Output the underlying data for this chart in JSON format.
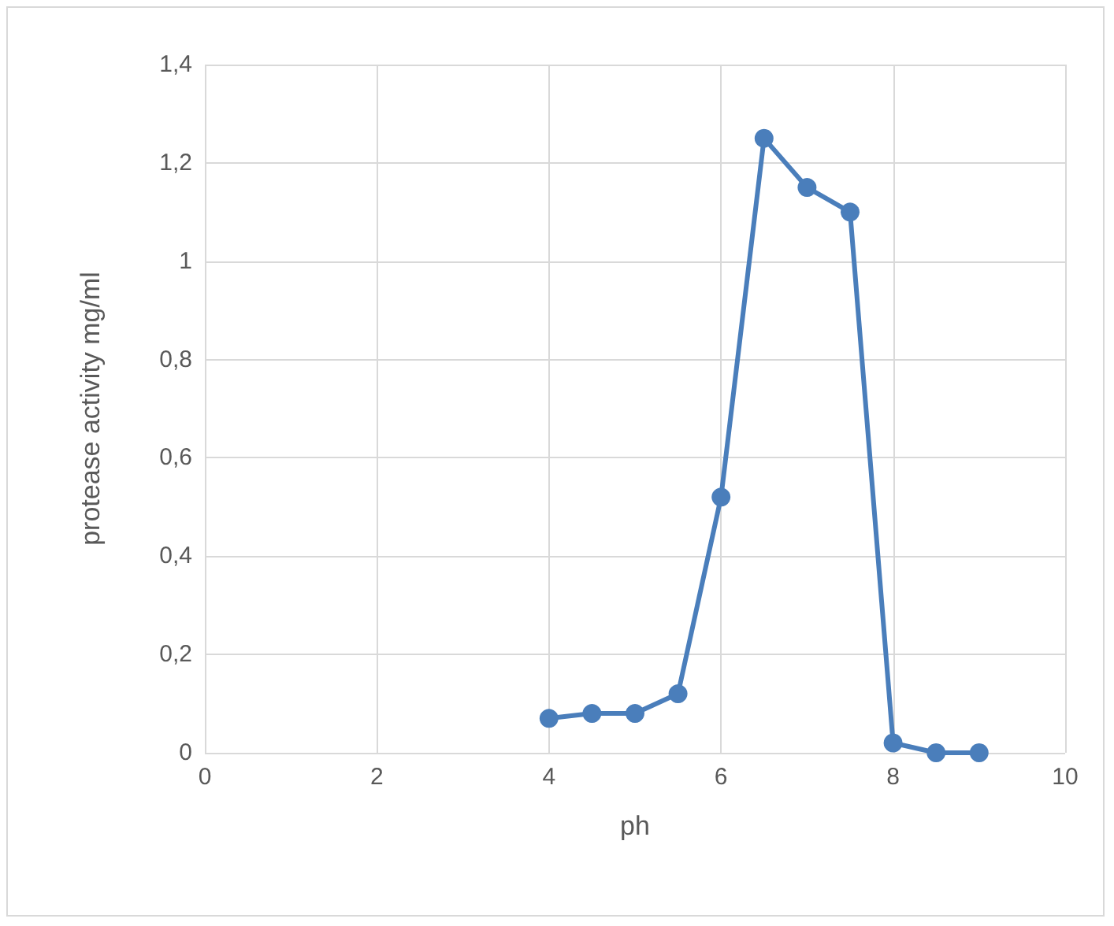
{
  "chart_data": {
    "type": "line",
    "xlabel": "ph",
    "ylabel": "protease activity mg/ml",
    "x": [
      4,
      4.5,
      5,
      5.5,
      6,
      6.5,
      7,
      7.5,
      8,
      8.5,
      9
    ],
    "series": [
      {
        "color": "#4a7ebb",
        "values": [
          0.07,
          0.08,
          0.08,
          0.12,
          0.52,
          1.25,
          1.15,
          1.1,
          0.02,
          0,
          0
        ]
      }
    ],
    "xlim": [
      0,
      10
    ],
    "xticks": [
      0,
      2,
      4,
      6,
      8,
      10
    ],
    "ylim": [
      0,
      1.4
    ],
    "yticks": [
      0,
      {
        "value": 0.2,
        "label": "0,2"
      },
      {
        "value": 0.4,
        "label": "0,4"
      },
      {
        "value": 0.6,
        "label": "0,6"
      },
      {
        "value": 0.8,
        "label": "0,8"
      },
      1,
      {
        "value": 1.2,
        "label": "1,2"
      },
      {
        "value": 1.4,
        "label": "1,4"
      }
    ],
    "grid": true,
    "marker": "circle",
    "line_style": "solid"
  }
}
